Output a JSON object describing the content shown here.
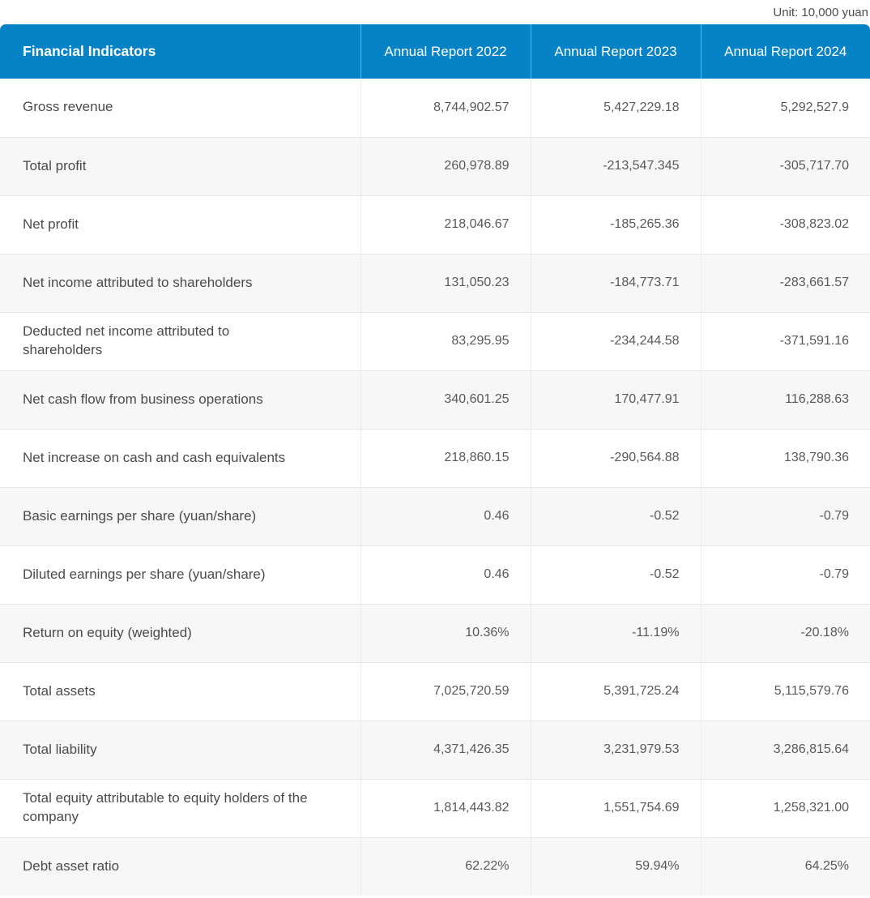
{
  "unit_note": "Unit: 10,000 yuan",
  "table": {
    "header": {
      "indicator": "Financial Indicators",
      "columns": [
        "Annual Report 2022",
        "Annual Report 2023",
        "Annual Report 2024"
      ]
    },
    "rows": [
      {
        "label": "Gross revenue",
        "values": [
          "8,744,902.57",
          "5,427,229.18",
          "5,292,527.9"
        ]
      },
      {
        "label": "Total profit",
        "values": [
          "260,978.89",
          "-213,547.345",
          "-305,717.70"
        ]
      },
      {
        "label": "Net profit",
        "values": [
          "218,046.67",
          "-185,265.36",
          "-308,823.02"
        ]
      },
      {
        "label": "Net income attributed to shareholders",
        "values": [
          "131,050.23",
          "-184,773.71",
          "-283,661.57"
        ]
      },
      {
        "label": "Deducted net income attributed to shareholders",
        "values": [
          "83,295.95",
          "-234,244.58",
          "-371,591.16"
        ]
      },
      {
        "label": "Net cash flow from business operations",
        "values": [
          "340,601.25",
          "170,477.91",
          "116,288.63"
        ]
      },
      {
        "label": "Net increase on cash and cash equivalents",
        "values": [
          "218,860.15",
          "-290,564.88",
          "138,790.36"
        ]
      },
      {
        "label": "Basic earnings per share (yuan/share)",
        "values": [
          "0.46",
          "-0.52",
          "-0.79"
        ]
      },
      {
        "label": "Diluted earnings per share (yuan/share)",
        "values": [
          "0.46",
          "-0.52",
          "-0.79"
        ]
      },
      {
        "label": "Return on equity (weighted)",
        "values": [
          "10.36%",
          "-11.19%",
          "-20.18%"
        ]
      },
      {
        "label": "Total assets",
        "values": [
          "7,025,720.59",
          "5,391,725.24",
          "5,115,579.76"
        ]
      },
      {
        "label": "Total liability",
        "values": [
          "4,371,426.35",
          "3,231,979.53",
          "3,286,815.64"
        ]
      },
      {
        "label": "Total equity attributable to equity holders of the company",
        "values": [
          "1,814,443.82",
          "1,551,754.69",
          "1,258,321.00"
        ]
      },
      {
        "label": "Debt asset ratio",
        "values": [
          "62.22%",
          "59.94%",
          "64.25%"
        ]
      }
    ]
  },
  "chart_data": {
    "type": "table",
    "title": "Financial Indicators",
    "unit": "10,000 yuan",
    "categories": [
      "Annual Report 2022",
      "Annual Report 2023",
      "Annual Report 2024"
    ],
    "series": [
      {
        "name": "Gross revenue",
        "values": [
          8744902.57,
          5427229.18,
          5292527.9
        ]
      },
      {
        "name": "Total profit",
        "values": [
          260978.89,
          -213547.345,
          -305717.7
        ]
      },
      {
        "name": "Net profit",
        "values": [
          218046.67,
          -185265.36,
          -308823.02
        ]
      },
      {
        "name": "Net income attributed to shareholders",
        "values": [
          131050.23,
          -184773.71,
          -283661.57
        ]
      },
      {
        "name": "Deducted net income attributed to shareholders",
        "values": [
          83295.95,
          -234244.58,
          -371591.16
        ]
      },
      {
        "name": "Net cash flow from business operations",
        "values": [
          340601.25,
          170477.91,
          116288.63
        ]
      },
      {
        "name": "Net increase on cash and cash equivalents",
        "values": [
          218860.15,
          -290564.88,
          138790.36
        ]
      },
      {
        "name": "Basic earnings per share (yuan/share)",
        "values": [
          0.46,
          -0.52,
          -0.79
        ]
      },
      {
        "name": "Diluted earnings per share (yuan/share)",
        "values": [
          0.46,
          -0.52,
          -0.79
        ]
      },
      {
        "name": "Return on equity (weighted) (%)",
        "values": [
          10.36,
          -11.19,
          -20.18
        ]
      },
      {
        "name": "Total assets",
        "values": [
          7025720.59,
          5391725.24,
          5115579.76
        ]
      },
      {
        "name": "Total liability",
        "values": [
          4371426.35,
          3231979.53,
          3286815.64
        ]
      },
      {
        "name": "Total equity attributable to equity holders of the company",
        "values": [
          1814443.82,
          1551754.69,
          1258321.0
        ]
      },
      {
        "name": "Debt asset ratio (%)",
        "values": [
          62.22,
          59.94,
          64.25
        ]
      }
    ]
  },
  "colors": {
    "header_bg": "#0682c6",
    "header_text": "#ffffff",
    "row_bg": "#ffffff",
    "row_alt_bg": "#f7f7f7",
    "border": "#e6e6e6",
    "label_text": "#4a4a4a",
    "value_text": "#595959"
  }
}
